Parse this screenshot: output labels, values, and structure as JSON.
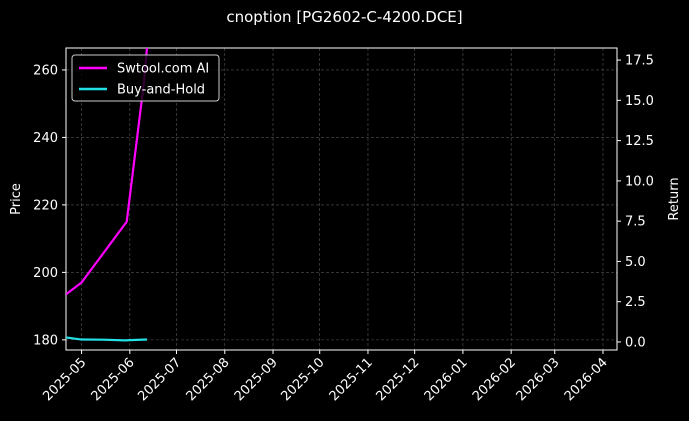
{
  "chart_data": {
    "type": "line",
    "title": "cnoption [PG2602-C-4200.DCE]",
    "ylabel_left": "Price",
    "ylabel_right": "Return",
    "x_ticks": [
      "2025-05",
      "2025-06",
      "2025-07",
      "2025-08",
      "2025-09",
      "2025-10",
      "2025-11",
      "2025-12",
      "2026-01",
      "2026-02",
      "2026-03",
      "2026-04"
    ],
    "xlim": [
      "2025-04-21",
      "2026-04-10"
    ],
    "left_axis": {
      "ylim": [
        177,
        266.5
      ],
      "ticks": [
        180,
        200,
        220,
        240,
        260
      ]
    },
    "right_axis": {
      "ylim": [
        -0.5,
        18.25
      ],
      "ticks": [
        0.0,
        2.5,
        5.0,
        7.5,
        10.0,
        12.5,
        15.0,
        17.5
      ],
      "tick_labels": [
        "0.0",
        "2.5",
        "5.0",
        "7.5",
        "10.0",
        "12.5",
        "15.0",
        "17.5"
      ]
    },
    "grid": true,
    "legend_position": "upper-left",
    "series": [
      {
        "name": "Swtool.com AI",
        "axis": "left",
        "color": "#ff00ff",
        "x": [
          "2025-04-21",
          "2025-05-01",
          "2025-05-30",
          "2025-06-10",
          "2025-06-12"
        ],
        "y": [
          193.5,
          197,
          215,
          256,
          266.5
        ]
      },
      {
        "name": "Buy-and-Hold",
        "axis": "right",
        "color": "#22e0e6",
        "x": [
          "2025-04-21",
          "2025-05-01",
          "2025-05-15",
          "2025-05-29",
          "2025-06-12"
        ],
        "y": [
          0.28,
          0.15,
          0.14,
          0.1,
          0.15
        ]
      }
    ]
  }
}
